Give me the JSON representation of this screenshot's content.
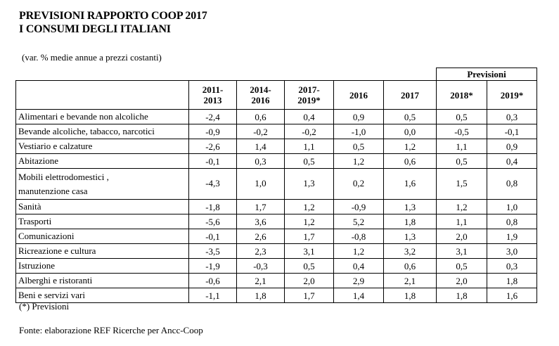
{
  "title_line1": "PREVISIONI RAPPORTO COOP 2017",
  "title_line2": "I CONSUMI DEGLI ITALIANI",
  "subtitle": "(var. % medie annue a prezzi costanti)",
  "group_header": "Previsioni",
  "note": "(*) Previsioni",
  "source": "Fonte: elaborazione REF Ricerche per Ancc-Coop",
  "chart_data": {
    "type": "table",
    "columns": [
      [
        "2011-",
        "2013"
      ],
      [
        "2014-",
        "2016"
      ],
      [
        "2017-",
        "2019*"
      ],
      [
        "2016"
      ],
      [
        "2017"
      ],
      [
        "2018*"
      ],
      [
        "2019*"
      ]
    ],
    "rows": [
      {
        "label": [
          "Alimentari e bevande non alcoliche"
        ],
        "values": [
          "-2,4",
          "0,6",
          "0,4",
          "0,9",
          "0,5",
          "0,5",
          "0,3"
        ]
      },
      {
        "label": [
          "Bevande alcoliche, tabacco, narcotici"
        ],
        "values": [
          "-0,9",
          "-0,2",
          "-0,2",
          "-1,0",
          "0,0",
          "-0,5",
          "-0,1"
        ]
      },
      {
        "label": [
          "Vestiario e calzature"
        ],
        "values": [
          "-2,6",
          "1,4",
          "1,1",
          "0,5",
          "1,2",
          "1,1",
          "0,9"
        ]
      },
      {
        "label": [
          "Abitazione"
        ],
        "values": [
          "-0,1",
          "0,3",
          "0,5",
          "1,2",
          "0,6",
          "0,5",
          "0,4"
        ]
      },
      {
        "label": [
          "Mobili elettrodomestici ,",
          "manutenzione casa"
        ],
        "values": [
          "-4,3",
          "1,0",
          "1,3",
          "0,2",
          "1,6",
          "1,5",
          "0,8"
        ]
      },
      {
        "label": [
          "Sanità"
        ],
        "values": [
          "-1,8",
          "1,7",
          "1,2",
          "-0,9",
          "1,3",
          "1,2",
          "1,0"
        ]
      },
      {
        "label": [
          "Trasporti"
        ],
        "values": [
          "-5,6",
          "3,6",
          "1,2",
          "5,2",
          "1,8",
          "1,1",
          "0,8"
        ]
      },
      {
        "label": [
          "Comunicazioni"
        ],
        "values": [
          "-0,1",
          "2,6",
          "1,7",
          "-0,8",
          "1,3",
          "2,0",
          "1,9"
        ]
      },
      {
        "label": [
          "Ricreazione e cultura"
        ],
        "values": [
          "-3,5",
          "2,3",
          "3,1",
          "1,2",
          "3,2",
          "3,1",
          "3,0"
        ]
      },
      {
        "label": [
          "Istruzione"
        ],
        "values": [
          "-1,9",
          "-0,3",
          "0,5",
          "0,4",
          "0,6",
          "0,5",
          "0,3"
        ]
      },
      {
        "label": [
          "Alberghi e ristoranti"
        ],
        "values": [
          "-0,6",
          "2,1",
          "2,0",
          "2,9",
          "2,1",
          "2,0",
          "1,8"
        ]
      },
      {
        "label": [
          "Beni e servizi vari"
        ],
        "values": [
          "-1,1",
          "1,8",
          "1,7",
          "1,4",
          "1,8",
          "1,8",
          "1,6"
        ]
      }
    ]
  }
}
